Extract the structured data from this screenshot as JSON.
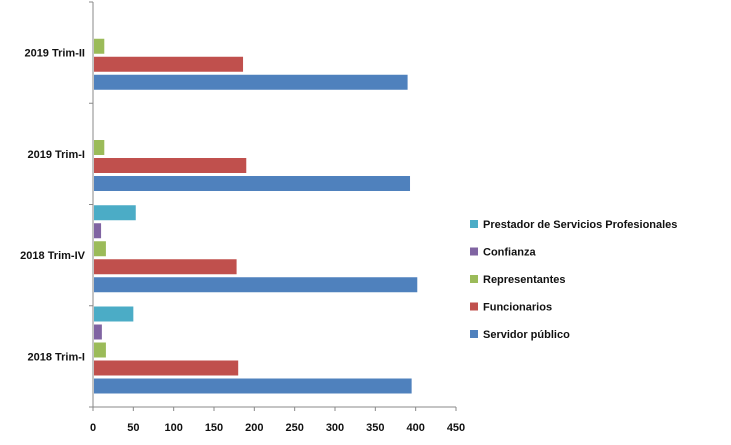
{
  "chart_data": {
    "type": "bar",
    "orientation": "horizontal",
    "title": "",
    "xlabel": "",
    "ylabel": "",
    "xlim": [
      0,
      450
    ],
    "x_ticks": [
      0,
      50,
      100,
      150,
      200,
      250,
      300,
      350,
      400,
      450
    ],
    "x_tick_labels": [
      "0",
      "50",
      "100",
      "150",
      "200",
      "250",
      "300",
      "350",
      "400",
      "450"
    ],
    "grid": false,
    "legend_position": "right",
    "categories": [
      "2018 Trim-I",
      "2018 Trim-IV",
      "2019 Trim-I",
      "2019 Trim-II"
    ],
    "series": [
      {
        "name": "Servidor público",
        "color": "#4F81BD",
        "values": [
          395,
          402,
          393,
          390
        ]
      },
      {
        "name": "Funcionarios",
        "color": "#C0504D",
        "values": [
          180,
          178,
          190,
          186
        ]
      },
      {
        "name": "Representantes",
        "color": "#9BBB59",
        "values": [
          16,
          16,
          14,
          14
        ]
      },
      {
        "name": "Confianza",
        "color": "#8064A2",
        "values": [
          11,
          10,
          null,
          null
        ]
      },
      {
        "name": "Prestador de Servicios Profesionales",
        "color": "#4BACC6",
        "values": [
          50,
          53,
          null,
          null
        ]
      }
    ]
  }
}
